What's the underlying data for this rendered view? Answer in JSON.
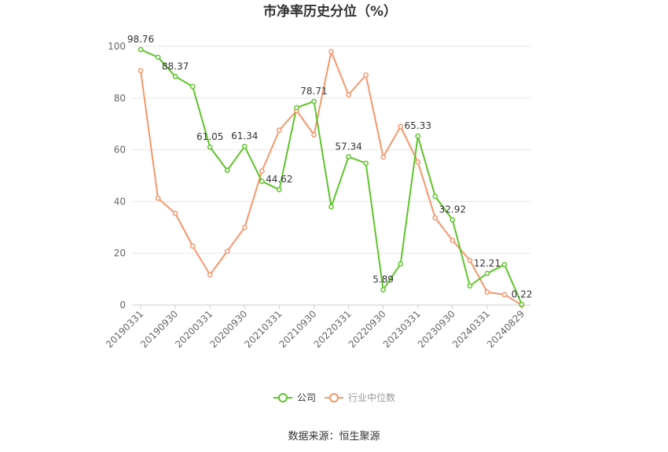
{
  "chart_data": {
    "type": "line",
    "title": "市净率历史分位（%）",
    "ylim": [
      0,
      100
    ],
    "yticks": [
      0,
      20,
      40,
      60,
      80,
      100
    ],
    "grid": true,
    "legend_position": "bottom",
    "x_tick_labels": [
      "20190331",
      "20190930",
      "20200331",
      "20200930",
      "20210331",
      "20210930",
      "20220331",
      "20220930",
      "20230331",
      "20230930",
      "20240331",
      "20240829"
    ],
    "series": [
      {
        "name": "公司",
        "color": "#5ec42a",
        "values": [
          98.76,
          95.8,
          88.37,
          84.5,
          61.05,
          52.1,
          61.34,
          47.8,
          44.62,
          76.3,
          78.71,
          38.0,
          57.34,
          54.8,
          5.89,
          15.9,
          65.33,
          42.0,
          32.92,
          7.4,
          12.21,
          15.6,
          0.22
        ],
        "labels": {
          "0": "98.76",
          "2": "88.37",
          "4": "61.05",
          "6": "61.34",
          "8": "44.62",
          "10": "78.71",
          "12": "57.34",
          "14": "5.89",
          "16": "65.33",
          "18": "32.92",
          "20": "12.21",
          "22": "0.22"
        }
      },
      {
        "name": "行业中位数",
        "color": "#f5976b",
        "values": [
          90.6,
          41.3,
          35.4,
          22.8,
          11.7,
          20.8,
          30.0,
          51.8,
          67.6,
          75.2,
          65.8,
          98.0,
          81.3,
          88.9,
          57.2,
          69.0,
          55.3,
          33.7,
          25.0,
          17.3,
          5.0,
          4.0,
          0.0
        ]
      }
    ]
  },
  "source_text": "数据来源：恒生聚源"
}
